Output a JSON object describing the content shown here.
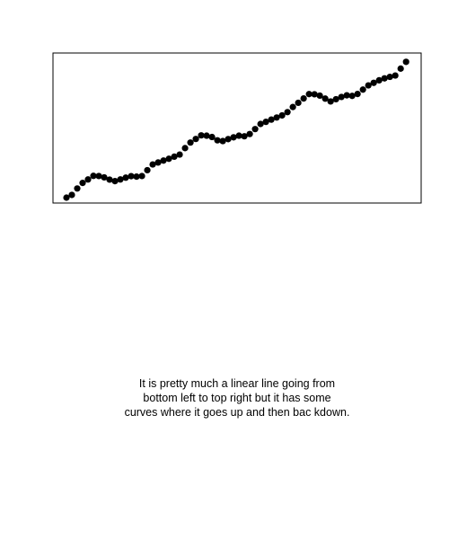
{
  "chart_data": {
    "type": "scatter",
    "color": "#000000",
    "x": [
      0,
      1,
      2,
      3,
      4,
      5,
      6,
      7,
      8,
      9,
      10,
      11,
      12,
      13,
      14,
      15,
      16,
      17,
      18,
      19,
      20,
      21,
      22,
      23,
      24,
      25,
      26,
      27,
      28,
      29,
      30,
      31,
      32,
      33,
      34,
      35,
      36,
      37,
      38,
      39,
      40,
      41,
      42,
      43,
      44,
      45,
      46,
      47,
      48,
      49,
      50,
      51,
      52,
      53,
      54,
      55,
      56,
      57,
      58,
      59,
      60,
      61,
      62,
      63
    ],
    "values": [
      3.6,
      5.4,
      9.7,
      13.4,
      15.7,
      18.1,
      18.0,
      17.1,
      15.6,
      14.6,
      15.7,
      16.9,
      17.9,
      17.6,
      18.0,
      21.9,
      25.7,
      27.0,
      28.3,
      29.5,
      30.9,
      32.3,
      36.6,
      40.3,
      42.7,
      45.1,
      44.9,
      44.0,
      41.8,
      41.3,
      42.6,
      43.8,
      44.9,
      44.5,
      46.0,
      49.3,
      52.7,
      54.1,
      55.6,
      57.0,
      58.4,
      60.6,
      64.0,
      66.8,
      69.7,
      72.6,
      72.5,
      71.6,
      69.6,
      67.7,
      69.2,
      70.7,
      71.8,
      71.4,
      72.7,
      75.6,
      78.4,
      80.1,
      81.8,
      83.1,
      84.1,
      85.0,
      89.6,
      94.1
    ],
    "xlim": [
      -2.5,
      65.8
    ],
    "ylim": [
      0,
      100
    ]
  },
  "caption": [
    "It is pretty much a linear line going from",
    "bottom left to top right but it has some",
    "curves where it goes up and then bac kdown."
  ]
}
